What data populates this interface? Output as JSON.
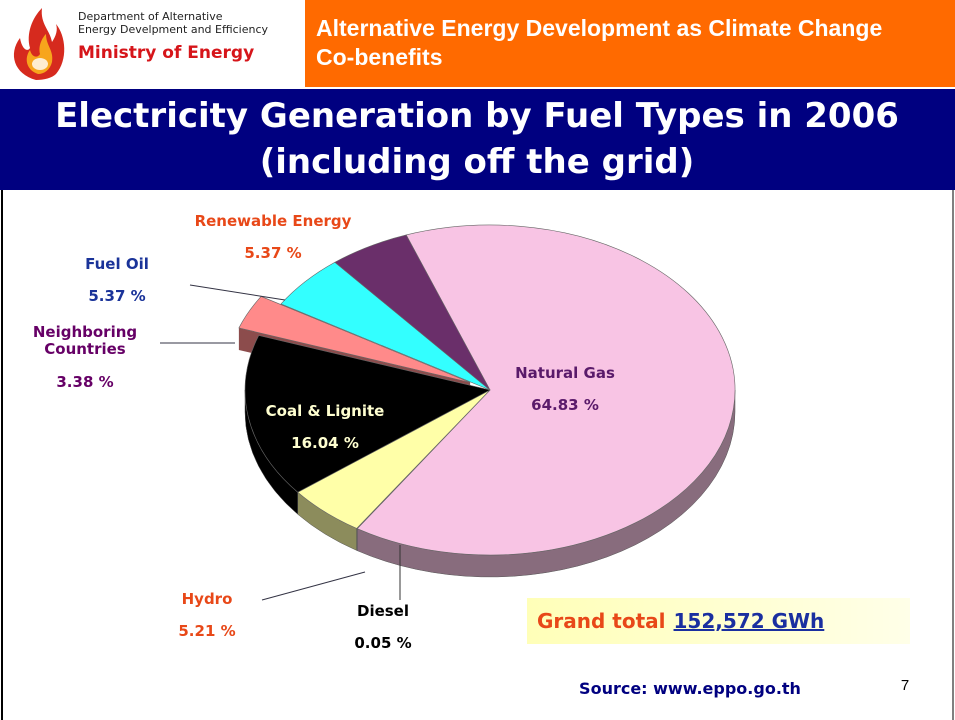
{
  "header": {
    "org_lines": [
      "Department of Alternative",
      "Energy Develpment and Efficiency"
    ],
    "ministry": "Ministry of Energy",
    "banner": "Alternative Energy Development as Climate Change Co-benefits"
  },
  "chart_data": {
    "type": "pie",
    "title": "Electricity Generation by Fuel Types in 2006",
    "subtitle": "(including off the grid)",
    "categories": [
      "Natural Gas",
      "Diesel",
      "Hydro",
      "Coal & Lignite",
      "Neighboring Countries",
      "Fuel Oil",
      "Renewable Energy"
    ],
    "values": [
      64.83,
      0.05,
      5.21,
      16.04,
      3.38,
      5.37,
      5.37
    ],
    "value_labels": [
      "64.83 %",
      "0.05 %",
      "5.21 %",
      "16.04 %",
      "3.38 %",
      "5.37 %",
      "5.37 %"
    ],
    "colors": [
      "#f8c4e4",
      "#9a9a9a",
      "#ffffa8",
      "#000000",
      "#ff8a8a",
      "#33ffff",
      "#6a2f6a"
    ]
  },
  "footer": {
    "grand_total_label": "Grand total",
    "grand_total_value": "152,572 GWh",
    "source": "Source: www.eppo.go.th",
    "page_number": "7"
  }
}
